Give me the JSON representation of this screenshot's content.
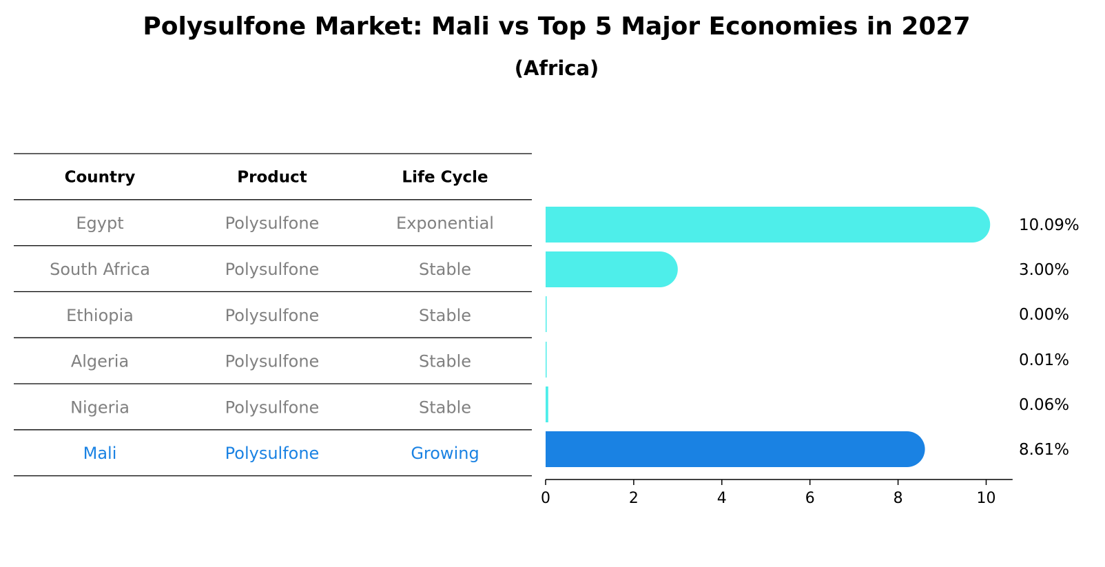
{
  "chart_data": {
    "type": "bar",
    "title": "Polysulfone Market: Mali vs Top 5 Major Economies in 2027",
    "subtitle": "(Africa)",
    "table": {
      "headers": [
        "Country",
        "Product",
        "Life Cycle"
      ],
      "rows": [
        [
          "Egypt",
          "Polysulfone",
          "Exponential"
        ],
        [
          "South Africa",
          "Polysulfone",
          "Stable"
        ],
        [
          "Ethiopia",
          "Polysulfone",
          "Stable"
        ],
        [
          "Algeria",
          "Polysulfone",
          "Stable"
        ],
        [
          "Nigeria",
          "Polysulfone",
          "Stable"
        ],
        [
          "Mali",
          "Polysulfone",
          "Growing"
        ]
      ],
      "highlight_row": 5
    },
    "categories": [
      "Egypt",
      "South Africa",
      "Ethiopia",
      "Algeria",
      "Nigeria",
      "Mali"
    ],
    "values": [
      10.09,
      3.0,
      0.0,
      0.01,
      0.06,
      8.61
    ],
    "value_labels": [
      "10.09%",
      "3.00%",
      "0.00%",
      "0.01%",
      "0.06%",
      "8.61%"
    ],
    "xlim": [
      0,
      10.6
    ],
    "xticks": [
      "0",
      "2",
      "4",
      "6",
      "8",
      "10"
    ],
    "colors": {
      "default_bar": "#4eeeea",
      "highlight_bar": "#1a82e3",
      "table_text": "#808080",
      "highlight_text": "#1a82e3"
    }
  }
}
